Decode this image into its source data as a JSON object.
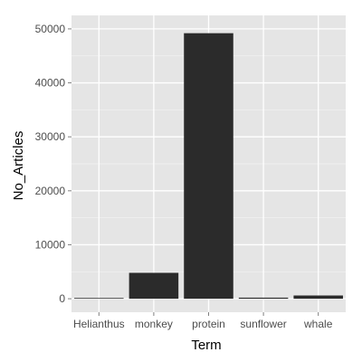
{
  "chart_data": {
    "type": "bar",
    "categories": [
      "Helianthus",
      "monkey",
      "protein",
      "sunflower",
      "whale"
    ],
    "values": [
      50,
      4800,
      49200,
      200,
      600
    ],
    "xlabel": "Term",
    "ylabel": "No_Articles",
    "ylim": [
      -2500,
      52500
    ],
    "yticks": [
      0,
      10000,
      20000,
      30000,
      40000,
      50000
    ],
    "grid": true,
    "legend": "none",
    "colors": {
      "panel": "#e5e5e5",
      "grid_major": "#ffffff",
      "grid_minor": "#f2f2f2",
      "bar": "#2b2b2b",
      "tick_text": "#4d4d4d",
      "tick_mark": "#7f7f7f"
    }
  }
}
